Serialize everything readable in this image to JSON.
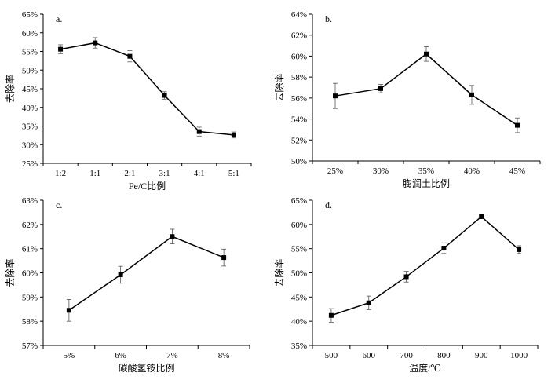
{
  "chart_data": [
    {
      "type": "line",
      "panel_label": "a.",
      "xlabel": "Fe/C比例",
      "ylabel": "去除率",
      "categories": [
        "1:2",
        "1:1",
        "2:1",
        "3:1",
        "4:1",
        "5:1"
      ],
      "values": [
        55.6,
        57.3,
        53.7,
        43.2,
        33.5,
        32.6
      ],
      "errors": [
        1.2,
        1.4,
        1.5,
        1.0,
        1.2,
        0.8
      ],
      "ylim": [
        25,
        65
      ],
      "yticks": [
        25,
        30,
        35,
        40,
        45,
        50,
        55,
        60,
        65
      ],
      "ytick_labels": [
        "25%",
        "30%",
        "35%",
        "40%",
        "45%",
        "50%",
        "55%",
        "60%",
        "65%"
      ],
      "grid": false
    },
    {
      "type": "line",
      "panel_label": "b.",
      "xlabel": "膨润土比例",
      "ylabel": "去除率",
      "categories": [
        "25%",
        "30%",
        "35%",
        "40%",
        "45%"
      ],
      "values": [
        56.2,
        56.9,
        60.2,
        56.3,
        53.4
      ],
      "errors": [
        1.2,
        0.4,
        0.7,
        0.9,
        0.7
      ],
      "ylim": [
        50,
        64
      ],
      "yticks": [
        50,
        52,
        54,
        56,
        58,
        60,
        62,
        64
      ],
      "ytick_labels": [
        "50%",
        "52%",
        "54%",
        "56%",
        "58%",
        "60%",
        "62%",
        "64%"
      ],
      "grid": false
    },
    {
      "type": "line",
      "panel_label": "c.",
      "xlabel": "碳酸氢铵比例",
      "ylabel": "去除率",
      "categories": [
        "5%",
        "6%",
        "7%",
        "8%"
      ],
      "values": [
        58.45,
        59.92,
        61.5,
        60.63
      ],
      "errors": [
        0.45,
        0.35,
        0.3,
        0.35
      ],
      "ylim": [
        57,
        63
      ],
      "yticks": [
        57,
        58,
        59,
        60,
        61,
        62,
        63
      ],
      "ytick_labels": [
        "57%",
        "58%",
        "59%",
        "60%",
        "61%",
        "62%",
        "63%"
      ],
      "grid": false
    },
    {
      "type": "line",
      "panel_label": "d.",
      "xlabel": "温度/℃",
      "ylabel": "去除率",
      "categories": [
        "500",
        "600",
        "700",
        "800",
        "900",
        "1000"
      ],
      "values": [
        41.2,
        43.8,
        49.2,
        55.1,
        61.6,
        54.8
      ],
      "errors": [
        1.4,
        1.4,
        1.1,
        1.1,
        0.3,
        0.8
      ],
      "ylim": [
        35,
        65
      ],
      "yticks": [
        35,
        40,
        45,
        50,
        55,
        60,
        65
      ],
      "ytick_labels": [
        "35%",
        "40%",
        "45%",
        "50%",
        "55%",
        "60%",
        "65%"
      ],
      "grid": false
    }
  ]
}
